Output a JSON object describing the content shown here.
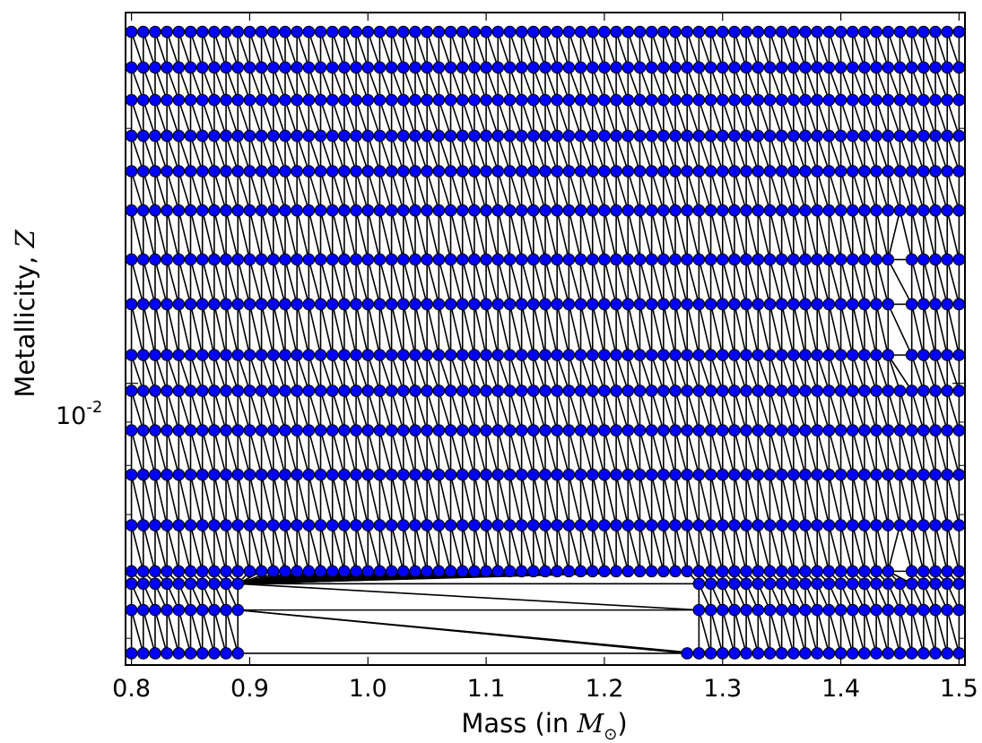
{
  "chart_data": {
    "type": "scatter",
    "xlabel_prefix": "Mass (in ",
    "xlabel_math": "M",
    "xlabel_sub": "⊙",
    "xlabel_suffix": ")",
    "ylabel_prefix": "Metallicity, ",
    "ylabel_math": "Z",
    "x_ticks": [
      "0.8",
      "0.9",
      "1.0",
      "1.1",
      "1.2",
      "1.3",
      "1.4",
      "1.5"
    ],
    "y_tick_label": {
      "base": "10",
      "exponent": "-2"
    },
    "y_scale": "log",
    "xlim": [
      0.795,
      1.505
    ],
    "ylim": [
      0.00465,
      0.0274
    ],
    "grid": false,
    "marker_color": "#0000ff",
    "edge_color": "#000000",
    "mass_grid": {
      "start": 0.8,
      "step": 0.01,
      "count": 71
    },
    "metallicity_rows": [
      0.0048,
      0.0054,
      0.0058,
      0.006,
      0.0068,
      0.0078,
      0.0088,
      0.0098,
      0.0108,
      0.0124,
      0.014,
      0.016,
      0.0178,
      0.0196,
      0.0216,
      0.0236,
      0.026
    ],
    "missing_segments": [
      {
        "z": 0.0054,
        "mass_from": 0.9,
        "mass_to": 1.27
      },
      {
        "z": 0.0058,
        "mass_from": 0.9,
        "mass_to": 1.27
      },
      {
        "z": 0.0048,
        "mass_from": 0.9,
        "mass_to": 1.26
      },
      {
        "z": 0.006,
        "mass_from": 1.45,
        "mass_to": 1.45
      },
      {
        "z": 0.0108,
        "mass_from": 1.45,
        "mass_to": 1.45
      },
      {
        "z": 0.0124,
        "mass_from": 1.45,
        "mass_to": 1.45
      },
      {
        "z": 0.014,
        "mass_from": 1.45,
        "mass_to": 1.45
      }
    ]
  }
}
